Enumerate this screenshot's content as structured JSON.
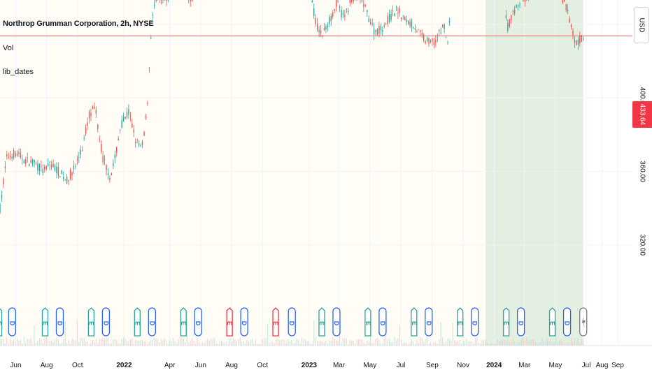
{
  "legend": {
    "title": "Northrop Grumman Corporation, 2h, NYSE",
    "line2": "Vol",
    "line3": "lib_dates"
  },
  "currency": "USD",
  "last_price": "433.64",
  "colors": {
    "up": "#26a69a",
    "down": "#ef5350",
    "price_line": "#f23645",
    "shade_light": "#fffdf5",
    "shade_green": "#e3efe0",
    "earnings": "#26a69a",
    "dividend": "#2962ff",
    "earnings_red": "#f23645",
    "split": "#787b86"
  },
  "chart_data": {
    "type": "candlestick",
    "title": "Northrop Grumman Corporation, 2h, NYSE",
    "x_range": [
      "2021-05-01",
      "2024-09-30"
    ],
    "ylim": [
      288,
      476
    ],
    "y_ticks": [
      "320.00",
      "360.00",
      "400.00"
    ],
    "x_ticks": [
      {
        "label": "Jun",
        "date": "2021-06-01",
        "bold": false
      },
      {
        "label": "Aug",
        "date": "2021-08-01",
        "bold": false
      },
      {
        "label": "Oct",
        "date": "2021-10-01",
        "bold": false
      },
      {
        "label": "2022",
        "date": "2022-01-01",
        "bold": true
      },
      {
        "label": "Apr",
        "date": "2022-04-01",
        "bold": false
      },
      {
        "label": "Jun",
        "date": "2022-06-01",
        "bold": false
      },
      {
        "label": "Aug",
        "date": "2022-08-01",
        "bold": false
      },
      {
        "label": "Oct",
        "date": "2022-10-01",
        "bold": false
      },
      {
        "label": "2023",
        "date": "2023-01-01",
        "bold": true
      },
      {
        "label": "Mar",
        "date": "2023-03-01",
        "bold": false
      },
      {
        "label": "May",
        "date": "2023-05-01",
        "bold": false
      },
      {
        "label": "Jul",
        "date": "2023-07-01",
        "bold": false
      },
      {
        "label": "Sep",
        "date": "2023-09-01",
        "bold": false
      },
      {
        "label": "Nov",
        "date": "2023-11-01",
        "bold": false
      },
      {
        "label": "2024",
        "date": "2024-01-01",
        "bold": true
      },
      {
        "label": "Mar",
        "date": "2024-03-01",
        "bold": false
      },
      {
        "label": "May",
        "date": "2024-05-01",
        "bold": false
      },
      {
        "label": "Jul",
        "date": "2024-07-01",
        "bold": false
      },
      {
        "label": "Aug",
        "date": "2024-08-01",
        "bold": false
      },
      {
        "label": "Sep",
        "date": "2024-09-01",
        "bold": false
      }
    ],
    "price_line": 433.64,
    "shaded_ranges": [
      {
        "start": "2021-05-01",
        "end": "2023-12-15",
        "tone": "light"
      },
      {
        "start": "2023-12-15",
        "end": "2024-06-25",
        "tone": "green"
      }
    ],
    "price_path": [
      [
        "2021-05-01",
        340
      ],
      [
        "2021-05-05",
        347
      ],
      [
        "2021-05-10",
        360
      ],
      [
        "2021-05-15",
        368
      ],
      [
        "2021-06-01",
        370
      ],
      [
        "2021-06-20",
        366
      ],
      [
        "2021-07-10",
        364
      ],
      [
        "2021-07-25",
        360
      ],
      [
        "2021-08-10",
        364
      ],
      [
        "2021-08-25",
        360
      ],
      [
        "2021-09-10",
        355
      ],
      [
        "2021-09-25",
        362
      ],
      [
        "2021-10-10",
        372
      ],
      [
        "2021-10-25",
        392
      ],
      [
        "2021-11-05",
        394
      ],
      [
        "2021-11-20",
        367
      ],
      [
        "2021-12-05",
        357
      ],
      [
        "2021-12-15",
        368
      ],
      [
        "2021-12-25",
        385
      ],
      [
        "2022-01-10",
        392
      ],
      [
        "2022-01-25",
        376
      ],
      [
        "2022-02-05",
        372
      ],
      [
        "2022-02-15",
        393
      ],
      [
        "2022-02-24",
        440
      ],
      [
        "2022-03-05",
        455
      ],
      [
        "2022-03-20",
        452
      ],
      [
        "2022-04-05",
        457
      ],
      [
        "2022-04-25",
        466
      ],
      [
        "2022-05-10",
        452
      ],
      [
        "2022-05-25",
        460
      ],
      [
        "2022-06-10",
        466
      ],
      [
        "2022-06-25",
        470
      ],
      [
        "2022-07-15",
        470
      ],
      [
        "2022-08-05",
        470
      ],
      [
        "2022-08-25",
        476
      ],
      [
        "2022-09-15",
        474
      ],
      [
        "2022-10-05",
        478
      ],
      [
        "2022-10-20",
        484
      ],
      [
        "2022-11-05",
        488
      ],
      [
        "2022-11-20",
        478
      ],
      [
        "2022-12-01",
        490
      ],
      [
        "2022-12-10",
        468
      ],
      [
        "2022-12-20",
        466
      ],
      [
        "2023-01-05",
        455
      ],
      [
        "2023-01-15",
        440
      ],
      [
        "2023-01-26",
        434
      ],
      [
        "2023-02-10",
        442
      ],
      [
        "2023-02-25",
        452
      ],
      [
        "2023-03-10",
        443
      ],
      [
        "2023-03-25",
        453
      ],
      [
        "2023-04-10",
        457
      ],
      [
        "2023-04-25",
        446
      ],
      [
        "2023-05-10",
        436
      ],
      [
        "2023-05-25",
        438
      ],
      [
        "2023-06-10",
        444
      ],
      [
        "2023-06-25",
        448
      ],
      [
        "2023-07-10",
        442
      ],
      [
        "2023-07-25",
        440
      ],
      [
        "2023-08-10",
        434
      ],
      [
        "2023-08-25",
        430
      ],
      [
        "2023-09-10",
        432
      ],
      [
        "2023-09-25",
        440
      ],
      [
        "2023-10-01",
        426
      ],
      [
        "2023-10-10",
        465
      ],
      [
        "2023-10-20",
        476
      ],
      [
        "2023-10-30",
        470
      ],
      [
        "2023-11-10",
        464
      ],
      [
        "2023-11-25",
        462
      ],
      [
        "2023-12-05",
        468
      ],
      [
        "2023-12-15",
        460
      ],
      [
        "2023-12-25",
        464
      ],
      [
        "2024-01-10",
        468
      ],
      [
        "2024-01-20",
        466
      ],
      [
        "2024-01-26",
        437
      ],
      [
        "2024-02-10",
        448
      ],
      [
        "2024-02-25",
        453
      ],
      [
        "2024-03-10",
        455
      ],
      [
        "2024-03-25",
        462
      ],
      [
        "2024-04-05",
        460
      ],
      [
        "2024-04-15",
        474
      ],
      [
        "2024-04-25",
        465
      ],
      [
        "2024-05-05",
        458
      ],
      [
        "2024-05-20",
        452
      ],
      [
        "2024-06-01",
        440
      ],
      [
        "2024-06-10",
        430
      ],
      [
        "2024-06-20",
        432
      ],
      [
        "2024-06-25",
        433.64
      ]
    ],
    "events": [
      {
        "type": "E",
        "date": "2021-04-29"
      },
      {
        "type": "D",
        "date": "2021-05-25"
      },
      {
        "type": "E",
        "date": "2021-07-29"
      },
      {
        "type": "D",
        "date": "2021-08-27"
      },
      {
        "type": "E",
        "date": "2021-10-28"
      },
      {
        "type": "D",
        "date": "2021-11-26"
      },
      {
        "type": "E",
        "date": "2022-01-27"
      },
      {
        "type": "D",
        "date": "2022-02-25"
      },
      {
        "type": "E",
        "date": "2022-04-28"
      },
      {
        "type": "D",
        "date": "2022-05-27"
      },
      {
        "type": "E",
        "date": "2022-07-28",
        "negative": true
      },
      {
        "type": "D",
        "date": "2022-08-26"
      },
      {
        "type": "E",
        "date": "2022-10-27",
        "negative": true
      },
      {
        "type": "D",
        "date": "2022-11-28"
      },
      {
        "type": "E",
        "date": "2023-01-26"
      },
      {
        "type": "D",
        "date": "2023-02-24"
      },
      {
        "type": "E",
        "date": "2023-04-27"
      },
      {
        "type": "D",
        "date": "2023-05-26"
      },
      {
        "type": "E",
        "date": "2023-07-27"
      },
      {
        "type": "D",
        "date": "2023-08-25"
      },
      {
        "type": "E",
        "date": "2023-10-26"
      },
      {
        "type": "D",
        "date": "2023-11-24"
      },
      {
        "type": "E",
        "date": "2024-01-25"
      },
      {
        "type": "D",
        "date": "2024-02-23"
      },
      {
        "type": "E",
        "date": "2024-04-25"
      },
      {
        "type": "D",
        "date": "2024-05-24"
      },
      {
        "type": "S",
        "date": "2024-06-25"
      }
    ]
  }
}
